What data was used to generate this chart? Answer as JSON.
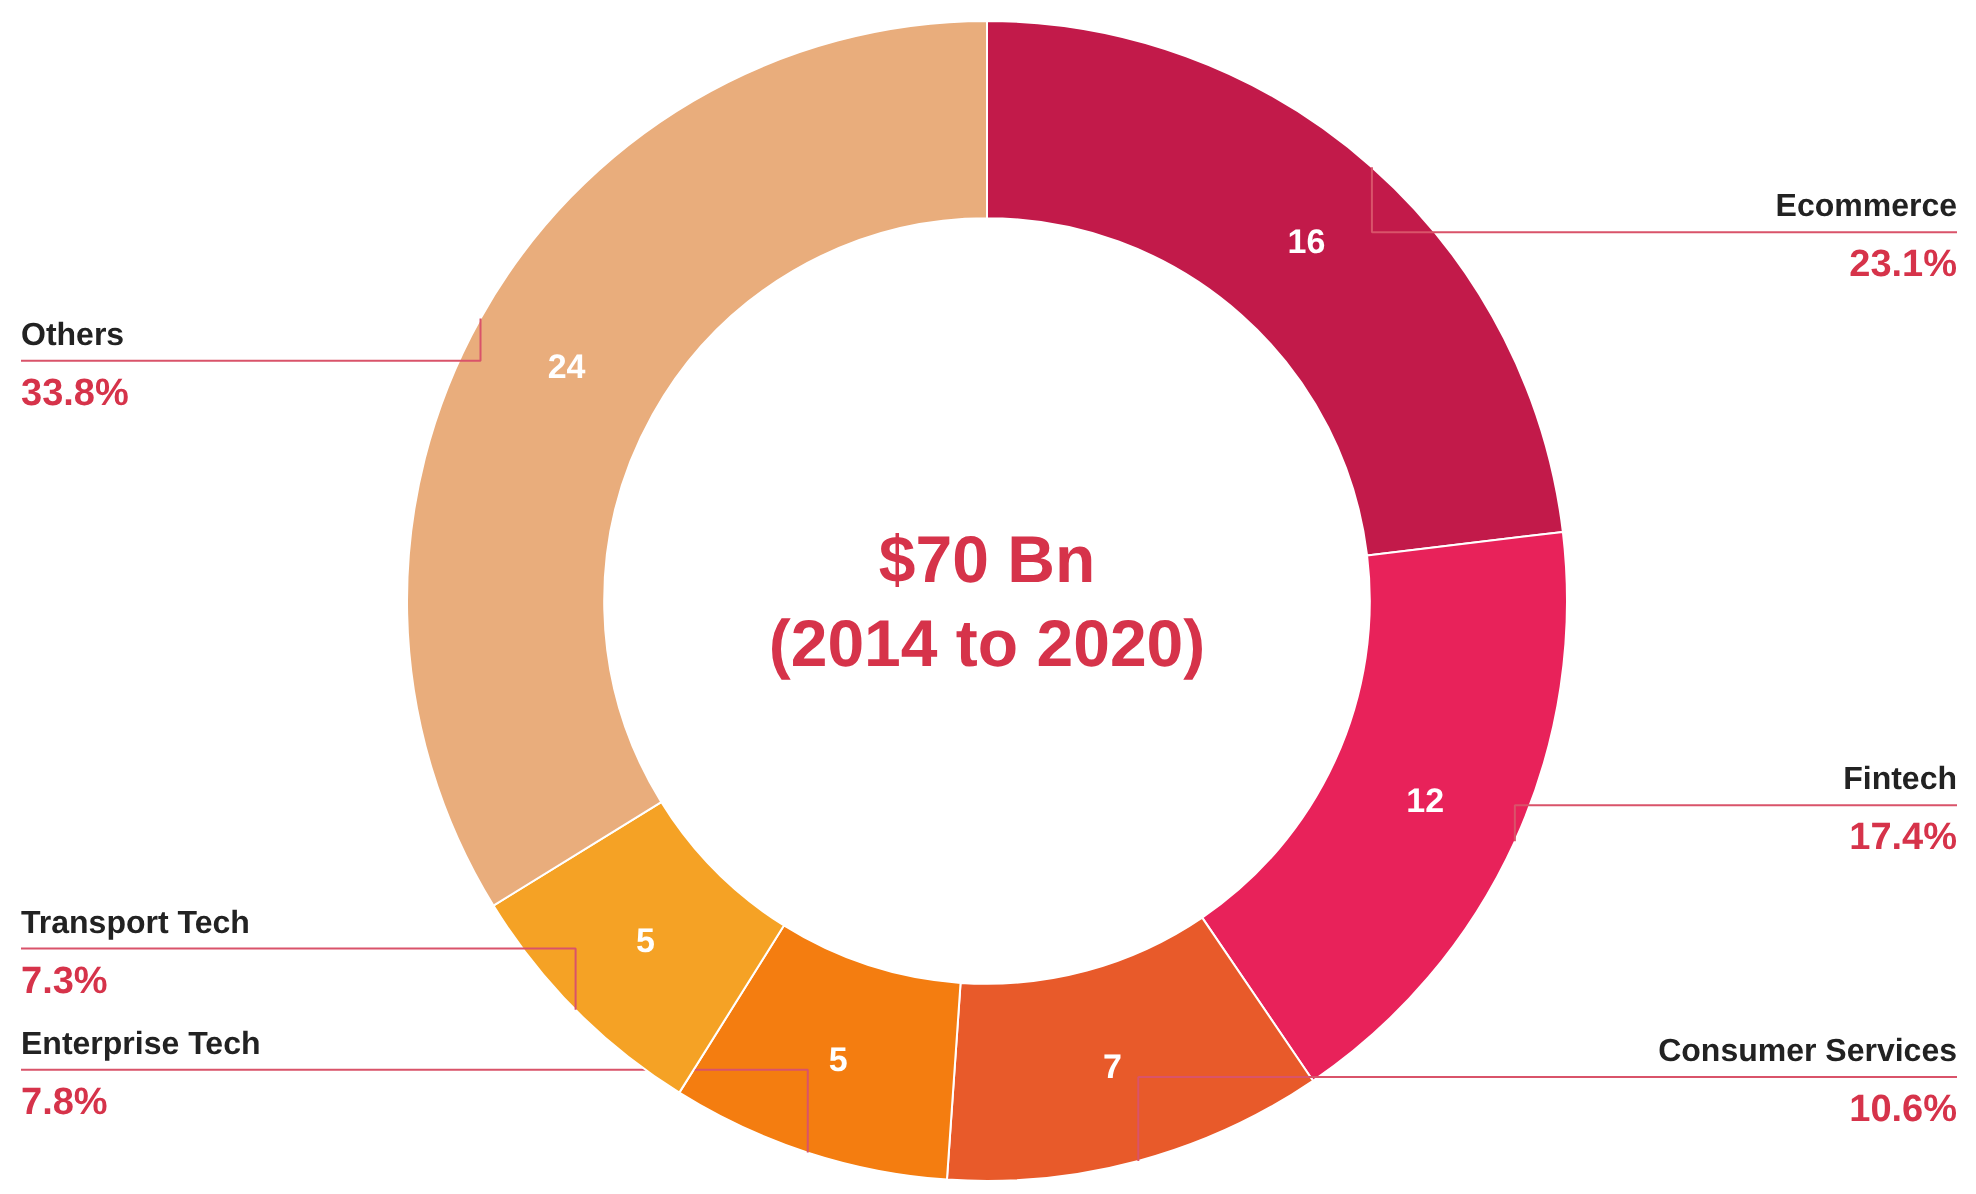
{
  "chart_data": {
    "type": "donut",
    "title": "$70 Bn\n(2014 to 2020)",
    "categories": [
      "Ecommerce",
      "Fintech",
      "Consumer Services",
      "Enterprise Tech",
      "Transport Tech",
      "Others"
    ],
    "values": [
      23.1,
      17.4,
      10.6,
      7.8,
      7.3,
      33.8
    ],
    "colors": [
      "#c21a4a",
      "#e8225a",
      "#e85a2a",
      "#f47d10",
      "#f5a225",
      "#e9ad7c"
    ],
    "value_labels": [
      "23.1%",
      "17.4%",
      "10.6%",
      "7.8%",
      "7.3%",
      "33.8%"
    ],
    "annotations": [
      "16",
      "12",
      "7",
      "5",
      "5",
      "24"
    ]
  }
}
